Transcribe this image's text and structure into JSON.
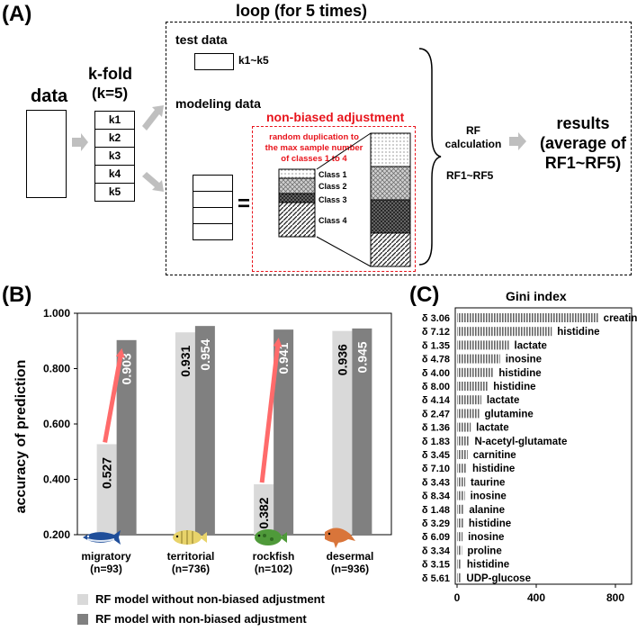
{
  "panel_a": {
    "label": "(A)",
    "loop_title": "loop (for 5 times)",
    "data_label": "data",
    "kfold_label": "k-fold",
    "kfold_param": "(k=5)",
    "folds": [
      "k1",
      "k2",
      "k3",
      "k4",
      "k5"
    ],
    "test_data_label": "test data",
    "test_fold_label": "k1~k5",
    "modeling_data_label": "modeling data",
    "equals": "=",
    "nonbiased_title": "non-biased adjustment",
    "nonbiased_desc": [
      "random duplication to",
      "the max sample number",
      "of classes 1 to 4"
    ],
    "classes": [
      "Class 1",
      "Class 2",
      "Class 3",
      "Class 4"
    ],
    "rf_calc": [
      "RF",
      "calculation"
    ],
    "rf_range": "RF1~RF5",
    "results": [
      "results",
      "(average of",
      "RF1~RF5)"
    ]
  },
  "panel_b": {
    "label": "(B)",
    "fish_icons": [
      "tuna-fish-icon",
      "striped-fish-icon",
      "rockfish-icon",
      "demersal-fish-icon"
    ],
    "legend": [
      {
        "label": "RF model without non-biased adjustment",
        "color": "#d9d9d9"
      },
      {
        "label": "RF model with non-biased adjustment",
        "color": "#808080"
      }
    ]
  },
  "panel_c": {
    "label": "(C)"
  },
  "chart_data": [
    {
      "type": "bar",
      "title": "",
      "ylabel": "accuracy of prediction",
      "xlabel": "",
      "ylim": [
        0.2,
        1.0
      ],
      "yticks": [
        "0.200",
        "0.400",
        "0.600",
        "0.800",
        "1.000"
      ],
      "categories": [
        "migratory",
        "territorial",
        "rockfish",
        "desermal"
      ],
      "category_counts": [
        "(n=93)",
        "(n=736)",
        "(n=102)",
        "(n=936)"
      ],
      "series": [
        {
          "name": "RF model without non-biased adjustment",
          "values": [
            0.527,
            0.931,
            0.382,
            0.936
          ],
          "labels": [
            "0.527",
            "0.931",
            "0.382",
            "0.936"
          ],
          "color": "#d9d9d9"
        },
        {
          "name": "RF model with non-biased adjustment",
          "values": [
            0.903,
            0.954,
            0.941,
            0.945
          ],
          "labels": [
            "0.903",
            "0.954",
            "0.941",
            "0.945"
          ],
          "color": "#808080"
        }
      ],
      "annotations": [
        "arrow migratory 0.527 to 0.903",
        "arrow rockfish 0.382 to 0.941"
      ]
    },
    {
      "type": "bar",
      "orientation": "horizontal",
      "title": "Gini index",
      "xlim": [
        0,
        800
      ],
      "xticks": [
        "0",
        "400",
        "800"
      ],
      "categories": [
        "δ 3.06",
        "δ 7.12",
        "δ 1.35",
        "δ 4.78",
        "δ 4.00",
        "δ 8.00",
        "δ 4.14",
        "δ 2.47",
        "δ 1.36",
        "δ 1.83",
        "δ 3.45",
        "δ 7.10",
        "δ 3.43",
        "δ 8.34",
        "δ 1.48",
        "δ 3.29",
        "δ 6.09",
        "δ 3.34",
        "δ 3.15",
        "δ 5.61"
      ],
      "compounds": [
        "creatine",
        "histidine",
        "lactate",
        "inosine",
        "histidine",
        "histidine",
        "lactate",
        "glutamine",
        "lactate",
        "N-acetyl-glutamate",
        "carnitine",
        "histidine",
        "taurine",
        "inosine",
        "alanine",
        "histidine",
        "inosine",
        "proline",
        "histidine",
        "UDP-glucose"
      ],
      "values": [
        640,
        430,
        235,
        195,
        165,
        140,
        110,
        100,
        62,
        55,
        48,
        45,
        37,
        35,
        30,
        28,
        25,
        22,
        20,
        18
      ]
    }
  ]
}
